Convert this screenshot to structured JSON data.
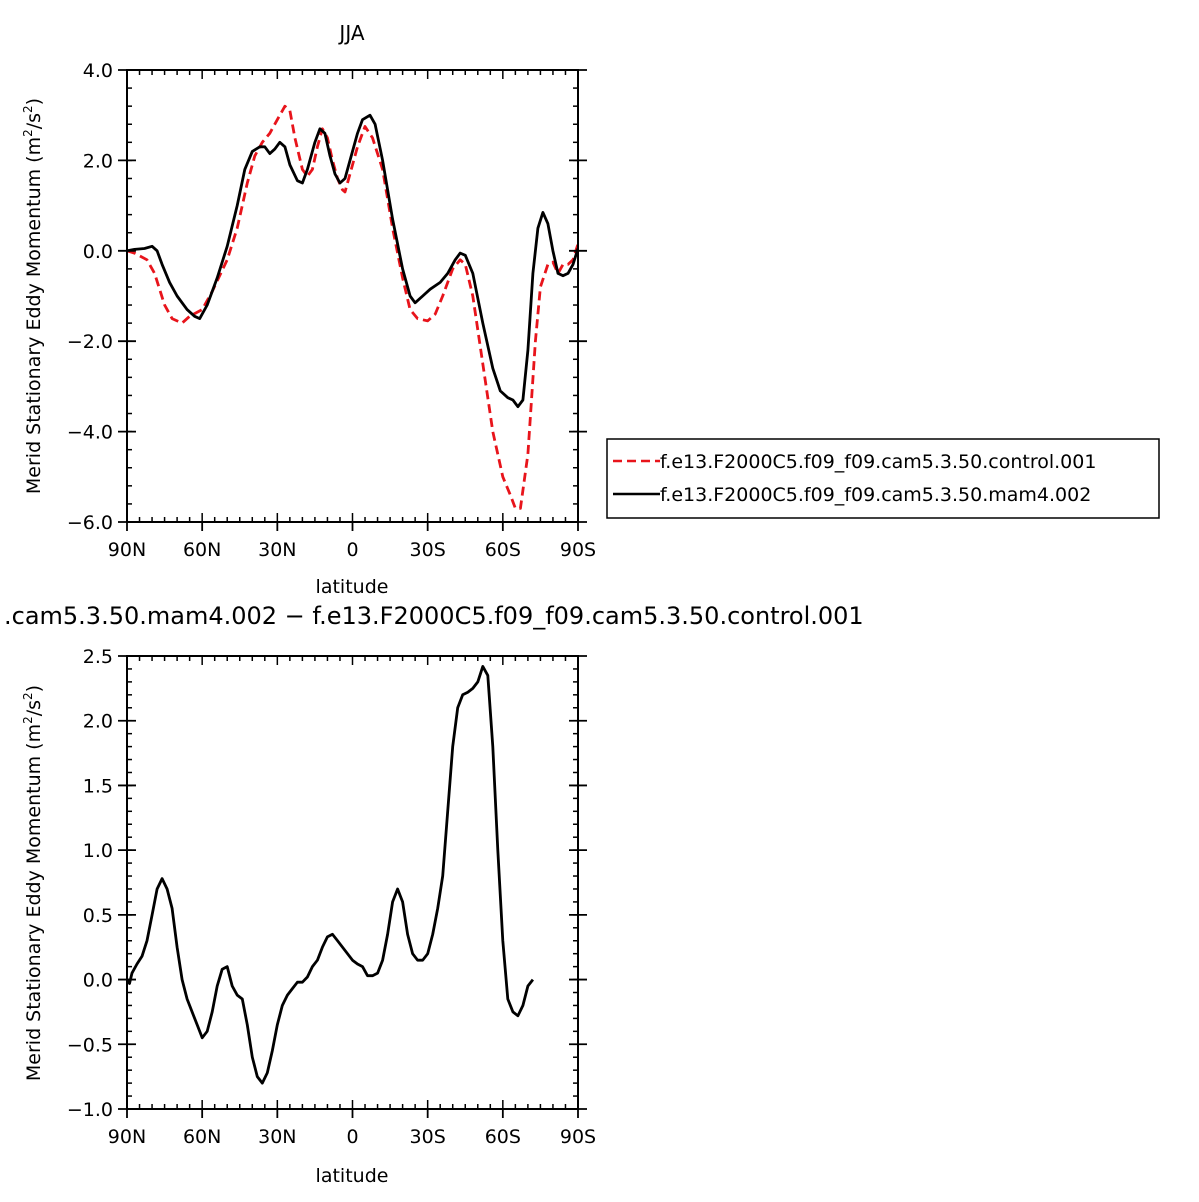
{
  "chart_data": [
    {
      "type": "line",
      "title": "JJA",
      "xlabel": "latitude",
      "ylabel": "Merid Stationary Eddy Momentum (m²/s²)",
      "ylabel_parts": {
        "main": "Merid Stationary Eddy Momentum",
        "unit_open": "(m",
        "unit_mid": "/s",
        "unit_close": ")",
        "exp": "2"
      },
      "x_reversed": true,
      "xlim": [
        -90,
        90
      ],
      "ylim": [
        -6.0,
        4.0
      ],
      "x_ticks": [
        {
          "value": 90,
          "label": "90N"
        },
        {
          "value": 60,
          "label": "60N"
        },
        {
          "value": 30,
          "label": "30N"
        },
        {
          "value": 0,
          "label": "0"
        },
        {
          "value": -30,
          "label": "30S"
        },
        {
          "value": -60,
          "label": "60S"
        },
        {
          "value": -90,
          "label": "90S"
        }
      ],
      "y_ticks": [
        {
          "value": 4.0,
          "label": "4.0"
        },
        {
          "value": 2.0,
          "label": "2.0"
        },
        {
          "value": 0.0,
          "label": "0.0"
        },
        {
          "value": -2.0,
          "label": "−2.0"
        },
        {
          "value": -4.0,
          "label": "−4.0"
        },
        {
          "value": -6.0,
          "label": "−6.0"
        }
      ],
      "legend": {
        "placement": "right"
      },
      "series": [
        {
          "name": "f.e13.F2000C5.f09_f09.cam5.3.50.control.001",
          "color": "#e8141b",
          "dash": true,
          "points": [
            [
              90,
              0.0
            ],
            [
              87,
              -0.05
            ],
            [
              82,
              -0.2
            ],
            [
              79,
              -0.5
            ],
            [
              75,
              -1.2
            ],
            [
              72,
              -1.5
            ],
            [
              68,
              -1.6
            ],
            [
              65,
              -1.45
            ],
            [
              60,
              -1.3
            ],
            [
              56,
              -0.9
            ],
            [
              50,
              -0.2
            ],
            [
              46,
              0.5
            ],
            [
              42,
              1.5
            ],
            [
              39,
              2.1
            ],
            [
              36,
              2.4
            ],
            [
              33,
              2.6
            ],
            [
              30,
              2.9
            ],
            [
              27,
              3.2
            ],
            [
              25,
              3.1
            ],
            [
              23,
              2.5
            ],
            [
              20,
              1.8
            ],
            [
              18,
              1.65
            ],
            [
              16,
              1.8
            ],
            [
              14,
              2.3
            ],
            [
              12,
              2.7
            ],
            [
              10,
              2.5
            ],
            [
              8,
              2.0
            ],
            [
              6,
              1.6
            ],
            [
              4,
              1.35
            ],
            [
              3,
              1.3
            ],
            [
              1,
              1.7
            ],
            [
              -2,
              2.3
            ],
            [
              -5,
              2.75
            ],
            [
              -8,
              2.5
            ],
            [
              -12,
              1.8
            ],
            [
              -16,
              0.5
            ],
            [
              -20,
              -0.6
            ],
            [
              -23,
              -1.3
            ],
            [
              -26,
              -1.5
            ],
            [
              -30,
              -1.55
            ],
            [
              -33,
              -1.4
            ],
            [
              -36,
              -1.0
            ],
            [
              -40,
              -0.4
            ],
            [
              -43,
              -0.2
            ],
            [
              -45,
              -0.3
            ],
            [
              -48,
              -1.0
            ],
            [
              -52,
              -2.5
            ],
            [
              -56,
              -4.0
            ],
            [
              -60,
              -5.0
            ],
            [
              -63,
              -5.4
            ],
            [
              -65,
              -5.7
            ],
            [
              -67,
              -5.7
            ],
            [
              -70,
              -4.5
            ],
            [
              -73,
              -2.0
            ],
            [
              -75,
              -0.8
            ],
            [
              -78,
              -0.3
            ],
            [
              -80,
              -0.25
            ],
            [
              -82,
              -0.5
            ],
            [
              -84,
              -0.3
            ],
            [
              -86,
              -0.3
            ],
            [
              -88,
              -0.2
            ],
            [
              -90,
              0.15
            ]
          ]
        },
        {
          "name": "f.e13.F2000C5.f09_f09.cam5.3.50.mam4.002",
          "color": "#000000",
          "dash": false,
          "points": [
            [
              90,
              0.0
            ],
            [
              87,
              0.03
            ],
            [
              83,
              0.05
            ],
            [
              80,
              0.1
            ],
            [
              78,
              0.0
            ],
            [
              76,
              -0.3
            ],
            [
              73,
              -0.7
            ],
            [
              70,
              -1.0
            ],
            [
              66,
              -1.3
            ],
            [
              63,
              -1.45
            ],
            [
              61,
              -1.5
            ],
            [
              58,
              -1.2
            ],
            [
              54,
              -0.6
            ],
            [
              50,
              0.1
            ],
            [
              46,
              1.0
            ],
            [
              43,
              1.8
            ],
            [
              40,
              2.2
            ],
            [
              37,
              2.3
            ],
            [
              35,
              2.3
            ],
            [
              33,
              2.15
            ],
            [
              31,
              2.25
            ],
            [
              29,
              2.4
            ],
            [
              27,
              2.3
            ],
            [
              25,
              1.9
            ],
            [
              22,
              1.55
            ],
            [
              20,
              1.5
            ],
            [
              18,
              1.8
            ],
            [
              15,
              2.4
            ],
            [
              13,
              2.7
            ],
            [
              11,
              2.6
            ],
            [
              9,
              2.1
            ],
            [
              7,
              1.7
            ],
            [
              5,
              1.5
            ],
            [
              3,
              1.6
            ],
            [
              1,
              2.0
            ],
            [
              -2,
              2.6
            ],
            [
              -4,
              2.9
            ],
            [
              -7,
              3.0
            ],
            [
              -9,
              2.8
            ],
            [
              -12,
              2.0
            ],
            [
              -16,
              0.7
            ],
            [
              -20,
              -0.4
            ],
            [
              -23,
              -1.0
            ],
            [
              -25,
              -1.15
            ],
            [
              -28,
              -1.0
            ],
            [
              -31,
              -0.85
            ],
            [
              -35,
              -0.7
            ],
            [
              -38,
              -0.5
            ],
            [
              -41,
              -0.2
            ],
            [
              -43,
              -0.05
            ],
            [
              -45,
              -0.1
            ],
            [
              -48,
              -0.5
            ],
            [
              -52,
              -1.6
            ],
            [
              -56,
              -2.6
            ],
            [
              -59,
              -3.1
            ],
            [
              -62,
              -3.25
            ],
            [
              -64,
              -3.3
            ],
            [
              -66,
              -3.45
            ],
            [
              -68,
              -3.3
            ],
            [
              -70,
              -2.2
            ],
            [
              -72,
              -0.5
            ],
            [
              -74,
              0.5
            ],
            [
              -76,
              0.85
            ],
            [
              -78,
              0.6
            ],
            [
              -80,
              0.0
            ],
            [
              -82,
              -0.5
            ],
            [
              -84,
              -0.55
            ],
            [
              -86,
              -0.5
            ],
            [
              -88,
              -0.3
            ],
            [
              -90,
              0.05
            ]
          ]
        }
      ]
    },
    {
      "type": "line",
      "title": ".cam5.3.50.mam4.002 − f.e13.F2000C5.f09_f09.cam5.3.50.control.001",
      "xlabel": "latitude",
      "ylabel": "Merid Stationary Eddy Momentum (m²/s²)",
      "ylabel_parts": {
        "main": "Merid Stationary Eddy Momentum",
        "unit_open": "(m",
        "unit_mid": "/s",
        "unit_close": ")",
        "exp": "2"
      },
      "x_reversed": true,
      "xlim": [
        -90,
        90
      ],
      "ylim": [
        -1.0,
        2.5
      ],
      "x_ticks": [
        {
          "value": 90,
          "label": "90N"
        },
        {
          "value": 60,
          "label": "60N"
        },
        {
          "value": 30,
          "label": "30N"
        },
        {
          "value": 0,
          "label": "0"
        },
        {
          "value": -30,
          "label": "30S"
        },
        {
          "value": -60,
          "label": "60S"
        },
        {
          "value": -90,
          "label": "90S"
        }
      ],
      "y_ticks": [
        {
          "value": 2.5,
          "label": "2.5"
        },
        {
          "value": 2.0,
          "label": "2.0"
        },
        {
          "value": 1.5,
          "label": "1.5"
        },
        {
          "value": 1.0,
          "label": "1.0"
        },
        {
          "value": 0.5,
          "label": "0.5"
        },
        {
          "value": 0.0,
          "label": "0.0"
        },
        {
          "value": -0.5,
          "label": "−0.5"
        },
        {
          "value": -1.0,
          "label": "−1.0"
        }
      ],
      "series": [
        {
          "color": "#000000",
          "dash": false,
          "points": [
            [
              90,
              0.0
            ],
            [
              89,
              -0.03
            ],
            [
              88,
              0.05
            ],
            [
              86,
              0.12
            ],
            [
              84,
              0.18
            ],
            [
              82,
              0.3
            ],
            [
              80,
              0.5
            ],
            [
              78,
              0.7
            ],
            [
              76,
              0.78
            ],
            [
              74,
              0.7
            ],
            [
              72,
              0.55
            ],
            [
              70,
              0.25
            ],
            [
              68,
              0.0
            ],
            [
              66,
              -0.15
            ],
            [
              64,
              -0.25
            ],
            [
              62,
              -0.35
            ],
            [
              60,
              -0.45
            ],
            [
              58,
              -0.4
            ],
            [
              56,
              -0.25
            ],
            [
              54,
              -0.05
            ],
            [
              52,
              0.08
            ],
            [
              50,
              0.1
            ],
            [
              48,
              -0.05
            ],
            [
              46,
              -0.12
            ],
            [
              44,
              -0.15
            ],
            [
              42,
              -0.35
            ],
            [
              40,
              -0.6
            ],
            [
              38,
              -0.75
            ],
            [
              36,
              -0.8
            ],
            [
              34,
              -0.72
            ],
            [
              32,
              -0.55
            ],
            [
              30,
              -0.35
            ],
            [
              28,
              -0.2
            ],
            [
              26,
              -0.12
            ],
            [
              24,
              -0.07
            ],
            [
              22,
              -0.02
            ],
            [
              20,
              -0.02
            ],
            [
              18,
              0.02
            ],
            [
              16,
              0.1
            ],
            [
              14,
              0.15
            ],
            [
              12,
              0.25
            ],
            [
              10,
              0.33
            ],
            [
              8,
              0.35
            ],
            [
              6,
              0.3
            ],
            [
              4,
              0.25
            ],
            [
              2,
              0.2
            ],
            [
              0,
              0.15
            ],
            [
              -2,
              0.12
            ],
            [
              -4,
              0.1
            ],
            [
              -6,
              0.03
            ],
            [
              -8,
              0.03
            ],
            [
              -10,
              0.05
            ],
            [
              -12,
              0.15
            ],
            [
              -14,
              0.35
            ],
            [
              -16,
              0.6
            ],
            [
              -18,
              0.7
            ],
            [
              -20,
              0.6
            ],
            [
              -22,
              0.35
            ],
            [
              -24,
              0.2
            ],
            [
              -26,
              0.15
            ],
            [
              -28,
              0.15
            ],
            [
              -30,
              0.2
            ],
            [
              -32,
              0.35
            ],
            [
              -34,
              0.55
            ],
            [
              -36,
              0.8
            ],
            [
              -38,
              1.3
            ],
            [
              -40,
              1.8
            ],
            [
              -42,
              2.1
            ],
            [
              -44,
              2.2
            ],
            [
              -46,
              2.22
            ],
            [
              -48,
              2.25
            ],
            [
              -50,
              2.3
            ],
            [
              -52,
              2.42
            ],
            [
              -54,
              2.35
            ],
            [
              -56,
              1.8
            ],
            [
              -58,
              1.0
            ],
            [
              -60,
              0.3
            ],
            [
              -62,
              -0.15
            ],
            [
              -64,
              -0.25
            ],
            [
              -66,
              -0.28
            ],
            [
              -68,
              -0.2
            ],
            [
              -70,
              -0.05
            ],
            [
              -72,
              0.0
            ]
          ]
        }
      ]
    }
  ]
}
